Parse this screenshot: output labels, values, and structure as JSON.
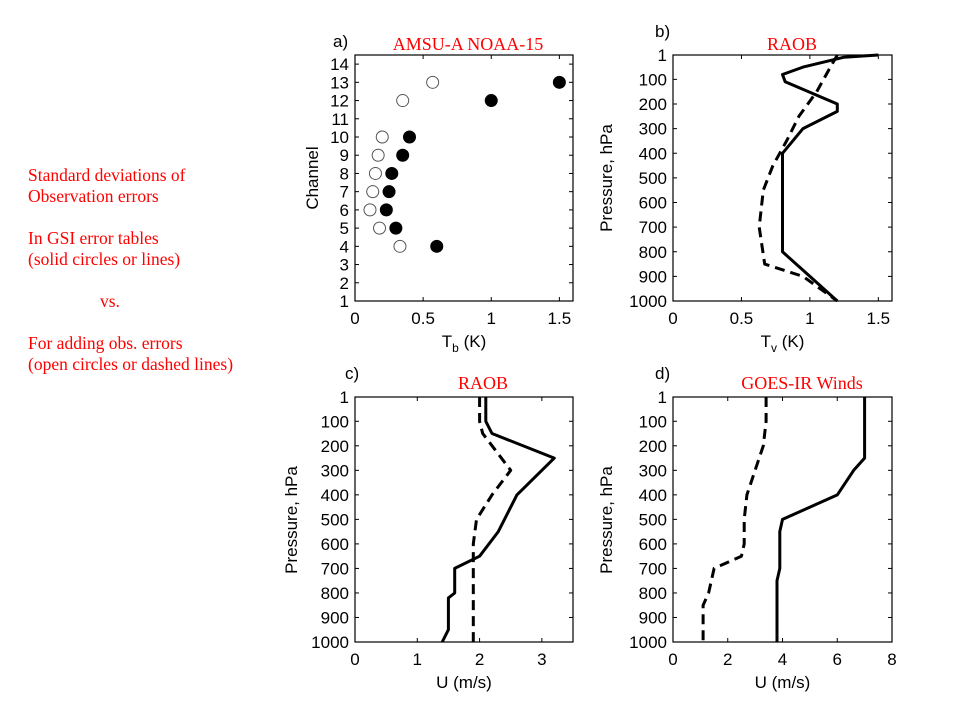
{
  "notes": {
    "line1": "Standard deviations of",
    "line2": "Observation errors",
    "line3": "In GSI error tables",
    "line4": "(solid circles or lines)",
    "line5": "vs.",
    "line6": "For adding obs. errors",
    "line7": "(open circles or dashed lines)"
  },
  "chart_data": [
    {
      "panel": "a)",
      "type": "scatter",
      "title": "AMSU-A NOAA-15",
      "xlabel_main": "T",
      "xlabel_sub": "b",
      "xlabel_rest": " (K)",
      "ylabel": "Channel",
      "xlim": [
        0,
        1.6
      ],
      "ylim": [
        1,
        14.5
      ],
      "xticks": [
        0,
        0.5,
        1,
        1.5
      ],
      "xtick_labels": [
        "0",
        "0.5",
        "1",
        "1.5"
      ],
      "yticks": [
        1,
        2,
        3,
        4,
        5,
        6,
        7,
        8,
        9,
        10,
        11,
        12,
        13,
        14
      ],
      "ytick_labels": [
        "1",
        "2",
        "3",
        "4",
        "5",
        "6",
        "7",
        "8",
        "9",
        "10",
        "11",
        "12",
        "13",
        "14"
      ],
      "series": [
        {
          "style": "solid",
          "x": [
            0.6,
            0.3,
            0.23,
            0.25,
            0.27,
            0.35,
            0.4,
            1.0,
            1.5
          ],
          "y": [
            4,
            5,
            6,
            7,
            8,
            9,
            10,
            12,
            13
          ]
        },
        {
          "style": "open",
          "x": [
            0.33,
            0.18,
            0.11,
            0.13,
            0.15,
            0.17,
            0.2,
            0.35,
            0.57
          ],
          "y": [
            4,
            5,
            6,
            7,
            8,
            9,
            10,
            12,
            13
          ]
        }
      ]
    },
    {
      "panel": "b)",
      "type": "line",
      "title": "RAOB",
      "xlabel_main": "T",
      "xlabel_sub": "v",
      "xlabel_rest": " (K)",
      "ylabel": "Pressure, hPa",
      "xlim": [
        0,
        1.6
      ],
      "ylim": [
        1000,
        1
      ],
      "xticks": [
        0,
        0.5,
        1,
        1.5
      ],
      "xtick_labels": [
        "0",
        "0.5",
        "1",
        "1.5"
      ],
      "yticks": [
        1,
        100,
        200,
        300,
        400,
        500,
        600,
        700,
        800,
        900,
        1000
      ],
      "ytick_labels": [
        "1",
        "100",
        "200",
        "300",
        "400",
        "500",
        "600",
        "700",
        "800",
        "900",
        "1000"
      ],
      "series": [
        {
          "style": "solid",
          "x": [
            1.5,
            1.25,
            0.95,
            0.8,
            0.82,
            1.2,
            1.2,
            0.95,
            0.8,
            0.8,
            0.8,
            0.8,
            0.8,
            1.0,
            1.2
          ],
          "y": [
            1,
            10,
            50,
            80,
            110,
            200,
            230,
            300,
            400,
            500,
            600,
            700,
            800,
            900,
            1000
          ]
        },
        {
          "style": "dashed",
          "x": [
            1.2,
            1.15,
            1.05,
            0.92,
            0.83,
            0.73,
            0.66,
            0.63,
            0.67,
            0.95,
            1.2
          ],
          "y": [
            1,
            50,
            150,
            250,
            350,
            450,
            550,
            700,
            850,
            900,
            1000
          ]
        }
      ]
    },
    {
      "panel": "c)",
      "type": "line",
      "title": "RAOB",
      "xlabel": "U (m/s)",
      "ylabel": "Pressure, hPa",
      "xlim": [
        0,
        3.5
      ],
      "ylim": [
        1000,
        1
      ],
      "xticks": [
        0,
        1,
        2,
        3
      ],
      "xtick_labels": [
        "0",
        "1",
        "2",
        "3"
      ],
      "yticks": [
        1,
        100,
        200,
        300,
        400,
        500,
        600,
        700,
        800,
        900,
        1000
      ],
      "ytick_labels": [
        "1",
        "100",
        "200",
        "300",
        "400",
        "500",
        "600",
        "700",
        "800",
        "900",
        "1000"
      ],
      "series": [
        {
          "style": "solid",
          "x": [
            2.1,
            2.1,
            2.2,
            3.2,
            2.6,
            2.3,
            2.0,
            1.6,
            1.6,
            1.5,
            1.5,
            1.4
          ],
          "y": [
            1,
            100,
            150,
            250,
            400,
            550,
            650,
            700,
            800,
            820,
            950,
            1000
          ]
        },
        {
          "style": "dashed",
          "x": [
            2.0,
            2.0,
            2.05,
            2.5,
            2.2,
            1.95,
            1.9,
            1.9,
            1.9,
            1.9
          ],
          "y": [
            1,
            100,
            150,
            300,
            400,
            500,
            600,
            700,
            850,
            1000
          ]
        }
      ]
    },
    {
      "panel": "d)",
      "type": "line",
      "title": "GOES-IR Winds",
      "xlabel": "U (m/s)",
      "ylabel": "Pressure, hPa",
      "xlim": [
        0,
        8
      ],
      "ylim": [
        1000,
        1
      ],
      "xticks": [
        0,
        2,
        4,
        6,
        8
      ],
      "xtick_labels": [
        "0",
        "2",
        "4",
        "6",
        "8"
      ],
      "yticks": [
        1,
        100,
        200,
        300,
        400,
        500,
        600,
        700,
        800,
        900,
        1000
      ],
      "ytick_labels": [
        "1",
        "100",
        "200",
        "300",
        "400",
        "500",
        "600",
        "700",
        "800",
        "900",
        "1000"
      ],
      "series": [
        {
          "style": "solid",
          "x": [
            7.0,
            7.0,
            7.0,
            6.6,
            6.0,
            4.0,
            3.9,
            3.9,
            3.8,
            3.8,
            3.8
          ],
          "y": [
            1,
            100,
            250,
            300,
            400,
            500,
            550,
            700,
            750,
            900,
            1000
          ]
        },
        {
          "style": "dashed",
          "x": [
            3.4,
            3.4,
            3.3,
            3.0,
            2.7,
            2.6,
            2.6,
            2.5,
            1.5,
            1.3,
            1.1,
            1.1
          ],
          "y": [
            1,
            100,
            200,
            300,
            400,
            500,
            600,
            650,
            700,
            800,
            850,
            1000
          ]
        }
      ]
    }
  ]
}
